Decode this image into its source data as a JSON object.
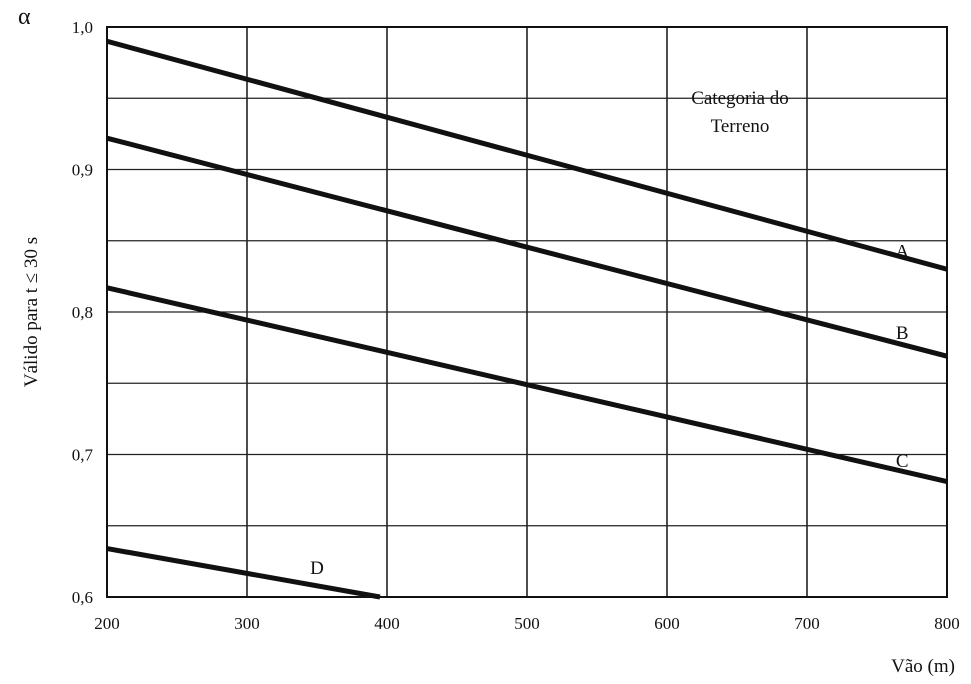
{
  "chart_data": {
    "type": "line",
    "y_symbol": "α",
    "ylabel": "Válido para t ≤ 30 s",
    "xlabel": "Vão (m)",
    "xlim": [
      200,
      800
    ],
    "ylim": [
      0.6,
      1.0
    ],
    "x_ticks": [
      200,
      300,
      400,
      500,
      600,
      700,
      800
    ],
    "x_tick_labels": [
      "200",
      "300",
      "400",
      "500",
      "600",
      "700",
      "800"
    ],
    "y_ticks": [
      0.6,
      0.7,
      0.8,
      0.9,
      1.0
    ],
    "y_tick_labels": [
      "0,6",
      "0,7",
      "0,8",
      "0,9",
      "1,0"
    ],
    "y_grid_minor": [
      0.65,
      0.75,
      0.85,
      0.95
    ],
    "grid": true,
    "legend_title": [
      "Categoria do",
      "Terreno"
    ],
    "legend_position": "top-right",
    "series": [
      {
        "name": "A",
        "x": [
          200,
          800
        ],
        "y": [
          0.99,
          0.83
        ],
        "label_at": [
          768,
          0.843
        ]
      },
      {
        "name": "B",
        "x": [
          200,
          800
        ],
        "y": [
          0.922,
          0.769
        ],
        "label_at": [
          768,
          0.786
        ]
      },
      {
        "name": "C",
        "x": [
          200,
          800
        ],
        "y": [
          0.817,
          0.681
        ],
        "label_at": [
          768,
          0.696
        ]
      },
      {
        "name": "D",
        "x": [
          200,
          395
        ],
        "y": [
          0.634,
          0.6
        ],
        "label_at": [
          350,
          0.621
        ]
      }
    ]
  }
}
